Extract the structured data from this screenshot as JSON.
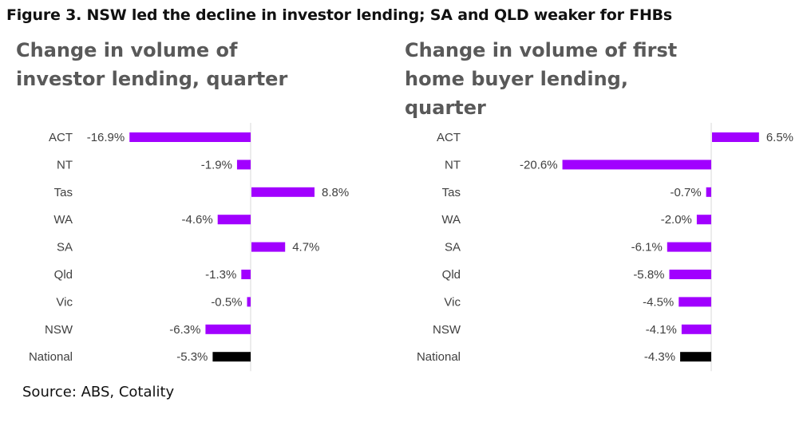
{
  "figure_title": "Figure 3. NSW led the decline in investor lending; SA and QLD weaker for FHBs",
  "source": "Source: ABS, Cotality",
  "colors": {
    "bar": "#a100ff",
    "national_bar": "#000000",
    "axis": "#d9d9d9",
    "text": "#404040"
  },
  "chart_data": [
    {
      "type": "bar",
      "orientation": "horizontal",
      "title": "Change in volume of investor lending, quarter",
      "categories": [
        "ACT",
        "NT",
        "Tas",
        "WA",
        "SA",
        "Qld",
        "Vic",
        "NSW",
        "National"
      ],
      "values": [
        -16.9,
        -1.9,
        8.8,
        -4.6,
        4.7,
        -1.3,
        -0.5,
        -6.3,
        -5.3
      ],
      "value_labels": [
        "-16.9%",
        "-1.9%",
        "8.8%",
        "-4.6%",
        "4.7%",
        "-1.3%",
        "-0.5%",
        "-6.3%",
        "-5.3%"
      ],
      "xlim": [
        -17,
        9
      ],
      "highlight": "National",
      "grid": false,
      "legend": "none"
    },
    {
      "type": "bar",
      "orientation": "horizontal",
      "title": "Change in volume of first home buyer lending, quarter",
      "categories": [
        "ACT",
        "NT",
        "Tas",
        "WA",
        "SA",
        "Qld",
        "Vic",
        "NSW",
        "National"
      ],
      "values": [
        6.5,
        -20.6,
        -0.7,
        -2.0,
        -6.1,
        -5.8,
        -4.5,
        -4.1,
        -4.3
      ],
      "value_labels": [
        "6.5%",
        "-20.6%",
        "-0.7%",
        "-2.0%",
        "-6.1%",
        "-5.8%",
        "-4.5%",
        "-4.1%",
        "-4.3%"
      ],
      "xlim": [
        -21,
        7
      ],
      "highlight": "National",
      "grid": false,
      "legend": "none"
    }
  ]
}
